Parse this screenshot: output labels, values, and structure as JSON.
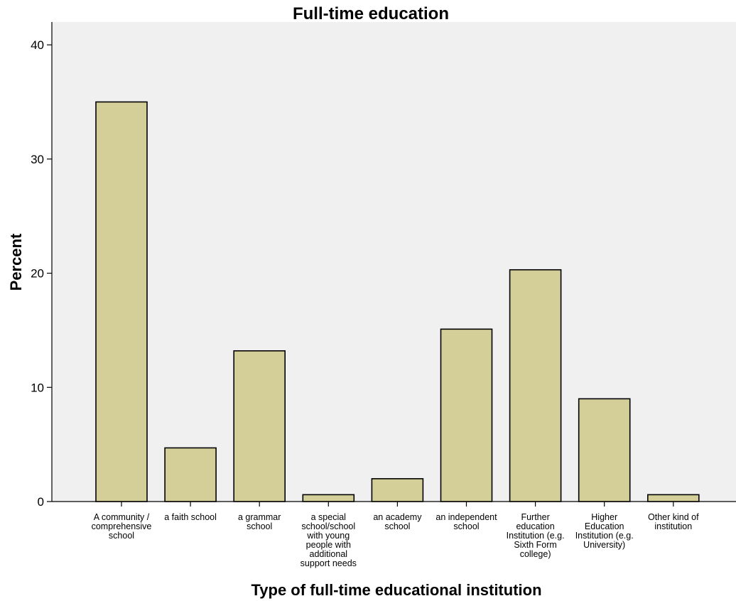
{
  "chart_data": {
    "type": "bar",
    "title": "Full-time education",
    "xlabel": "Type of full-time educational institution",
    "ylabel": "Percent",
    "ylim": [
      0,
      42
    ],
    "yticks": [
      0,
      10,
      20,
      30,
      40
    ],
    "grid": false,
    "categories": [
      "A community / comprehensive school",
      "a faith school",
      "a grammar school",
      "a special school/school with young people with additional support needs",
      "an academy school",
      "an independent school",
      "Further education Institution (e.g. Sixth Form college)",
      "Higher Education Institution (e.g. University)",
      "Other kind of institution"
    ],
    "category_label_lines": [
      [
        "A community /",
        "comprehensive",
        "school"
      ],
      [
        "a faith school"
      ],
      [
        "a grammar",
        "school"
      ],
      [
        "a special",
        "school/school",
        "with young",
        "people with",
        "additional",
        "support needs"
      ],
      [
        "an academy",
        "school"
      ],
      [
        "an independent",
        "school"
      ],
      [
        "Further",
        "education",
        "Institution (e.g.",
        "Sixth Form",
        "college)"
      ],
      [
        "Higher",
        "Education",
        "Institution (e.g.",
        "University)"
      ],
      [
        "Other kind of",
        "institution"
      ]
    ],
    "values": [
      35.0,
      4.7,
      13.2,
      0.6,
      2.0,
      15.1,
      20.3,
      9.0,
      0.6
    ],
    "colors": {
      "bar_fill": "#d4cf98",
      "bar_stroke": "#000000",
      "plot_background": "#f0f0f0"
    }
  }
}
